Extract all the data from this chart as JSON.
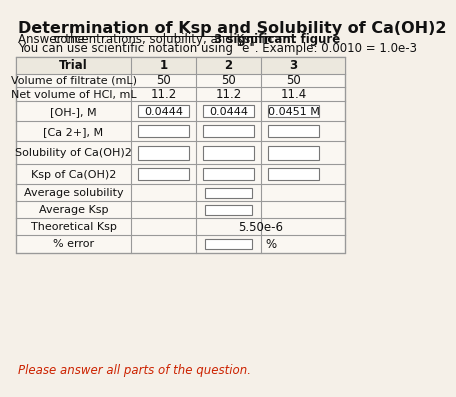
{
  "title": "Determination of Ksp and Solubility of Ca(OH)2",
  "footer": "Please answer all parts of the question.",
  "bg_color": "#f5f0e8",
  "table_bg": "#faf7f2",
  "header_bg": "#ece8de",
  "border_color": "#999999",
  "input_box_color": "#ffffff"
}
